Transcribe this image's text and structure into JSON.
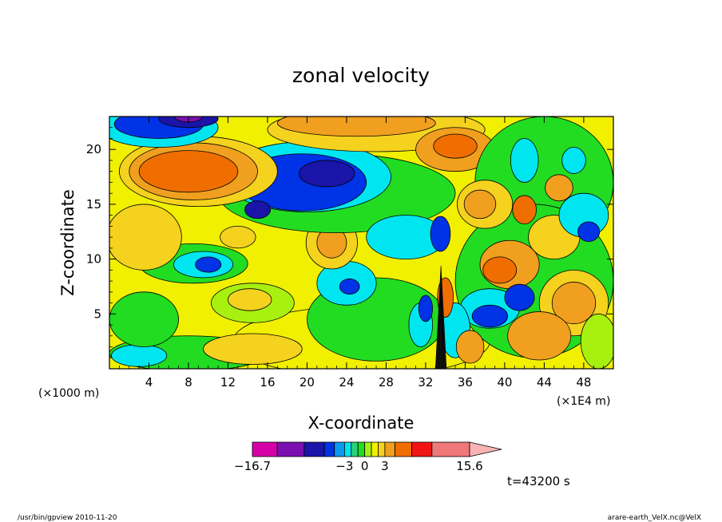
{
  "chart_data": {
    "type": "heatmap",
    "title": "zonal velocity",
    "xlabel": "X-coordinate",
    "ylabel": "Z-coordinate",
    "x_scale_label": "(×1000 m)",
    "x_unit_label": "(×1E4 m)",
    "time_label": "t=43200 s",
    "xlim": [
      0,
      51
    ],
    "ylim": [
      0,
      23
    ],
    "x_ticks": [
      4,
      8,
      12,
      16,
      20,
      24,
      28,
      32,
      36,
      40,
      44,
      48
    ],
    "x_tick_labels": [
      "4",
      "8",
      "12",
      "16",
      "20",
      "24",
      "28",
      "32",
      "36",
      "40",
      "44",
      "48"
    ],
    "y_ticks": [
      5,
      10,
      15,
      20
    ],
    "y_tick_labels": [
      "5",
      "10",
      "15",
      "20"
    ],
    "colorbar": {
      "labels": [
        {
          "value": -16.7,
          "text": "−16.7"
        },
        {
          "value": -3,
          "text": "−3"
        },
        {
          "value": 0,
          "text": "0"
        },
        {
          "value": 3,
          "text": "3"
        },
        {
          "value": 15.6,
          "text": "15.6"
        }
      ],
      "levels": [
        {
          "from": -16.7,
          "to": -13,
          "color": "#d600a8"
        },
        {
          "from": -13,
          "to": -9,
          "color": "#7a10b0"
        },
        {
          "from": -9,
          "to": -6,
          "color": "#1a14a8"
        },
        {
          "from": -6,
          "to": -4.5,
          "color": "#0032e6"
        },
        {
          "from": -4.5,
          "to": -3,
          "color": "#0a9af0"
        },
        {
          "from": -3,
          "to": -2,
          "color": "#00e6f0"
        },
        {
          "from": -2,
          "to": -1,
          "color": "#28d278"
        },
        {
          "from": -1,
          "to": 0,
          "color": "#22dc22"
        },
        {
          "from": 0,
          "to": 1,
          "color": "#a8f010"
        },
        {
          "from": 1,
          "to": 2,
          "color": "#f0f000"
        },
        {
          "from": 2,
          "to": 3,
          "color": "#f4d21e"
        },
        {
          "from": 3,
          "to": 4.5,
          "color": "#f0a01e"
        },
        {
          "from": 4.5,
          "to": 7,
          "color": "#f06e00"
        },
        {
          "from": 7,
          "to": 10,
          "color": "#f01414"
        },
        {
          "from": 10,
          "to": 15.6,
          "color": "#f07878"
        }
      ],
      "extend_color": "#f8b4b4"
    },
    "background_color": "#f0f000",
    "regions": [
      {
        "x": 25.5,
        "y": 2.5,
        "rx": 13,
        "ry": 3.2,
        "level": 1,
        "color": "#f0f000"
      },
      {
        "x": 8,
        "y": 1.4,
        "rx": 8,
        "ry": 1.6,
        "level": -1,
        "color": "#22dc22"
      },
      {
        "x": 3,
        "y": 1.2,
        "rx": 2.8,
        "ry": 1.0,
        "level": -3,
        "color": "#00e6f0"
      },
      {
        "x": 14.5,
        "y": 1.8,
        "rx": 5,
        "ry": 1.4,
        "level": 3,
        "color": "#f4d21e"
      },
      {
        "x": 27,
        "y": 4.5,
        "rx": 7,
        "ry": 3.8,
        "level": -1,
        "color": "#22dc22"
      },
      {
        "x": 24,
        "y": 7.8,
        "rx": 3,
        "ry": 2.0,
        "level": -3,
        "color": "#00e6f0"
      },
      {
        "x": 24.3,
        "y": 7.5,
        "rx": 1.0,
        "ry": 0.7,
        "level": -6,
        "color": "#0032e6"
      },
      {
        "x": 14.5,
        "y": 6.0,
        "rx": 4.2,
        "ry": 1.8,
        "level": 0,
        "color": "#a8f010"
      },
      {
        "x": 14.2,
        "y": 6.3,
        "rx": 2.2,
        "ry": 1.0,
        "level": 3,
        "color": "#f4d21e"
      },
      {
        "x": 3.5,
        "y": 4.5,
        "rx": 3.5,
        "ry": 2.5,
        "level": -1,
        "color": "#22dc22"
      },
      {
        "x": 8.5,
        "y": 9.6,
        "rx": 5.5,
        "ry": 1.8,
        "level": -1,
        "color": "#22dc22"
      },
      {
        "x": 9.5,
        "y": 9.5,
        "rx": 3,
        "ry": 1.2,
        "level": -3,
        "color": "#00e6f0"
      },
      {
        "x": 10,
        "y": 9.5,
        "rx": 1.3,
        "ry": 0.7,
        "level": -6,
        "color": "#0032e6"
      },
      {
        "x": 3.5,
        "y": 12,
        "rx": 3.8,
        "ry": 3.0,
        "level": 3,
        "color": "#f4d21e"
      },
      {
        "x": 22.5,
        "y": 11.5,
        "rx": 2.6,
        "ry": 2.4,
        "level": 3,
        "color": "#f4d21e"
      },
      {
        "x": 22.5,
        "y": 11.5,
        "rx": 1.5,
        "ry": 1.4,
        "level": 4.5,
        "color": "#f0a01e"
      },
      {
        "x": 13,
        "y": 12.0,
        "rx": 1.8,
        "ry": 1.0,
        "level": 3,
        "color": "#f4d21e"
      },
      {
        "x": 23,
        "y": 16,
        "rx": 12,
        "ry": 3.6,
        "level": -1,
        "color": "#22dc22"
      },
      {
        "x": 20,
        "y": 17.5,
        "rx": 8.5,
        "ry": 3.2,
        "level": -3,
        "color": "#00e6f0"
      },
      {
        "x": 19.5,
        "y": 17,
        "rx": 6.5,
        "ry": 2.6,
        "level": -6,
        "color": "#0032e6"
      },
      {
        "x": 22,
        "y": 17.8,
        "rx": 2.8,
        "ry": 1.2,
        "level": -9,
        "color": "#1a14a8"
      },
      {
        "x": 15,
        "y": 14.5,
        "rx": 1.3,
        "ry": 0.8,
        "level": -9,
        "color": "#1a14a8"
      },
      {
        "x": 30,
        "y": 12,
        "rx": 4,
        "ry": 2.0,
        "level": -3,
        "color": "#00e6f0"
      },
      {
        "x": 33.5,
        "y": 12.3,
        "rx": 1.0,
        "ry": 1.6,
        "level": -6,
        "color": "#0032e6"
      },
      {
        "x": 9,
        "y": 18,
        "rx": 8,
        "ry": 3.2,
        "level": 3,
        "color": "#f4d21e"
      },
      {
        "x": 8.5,
        "y": 18,
        "rx": 6.5,
        "ry": 2.6,
        "level": 4.5,
        "color": "#f0a01e"
      },
      {
        "x": 8,
        "y": 18,
        "rx": 5,
        "ry": 1.9,
        "level": 7,
        "color": "#f06e00"
      },
      {
        "x": 5,
        "y": 22,
        "rx": 6,
        "ry": 1.8,
        "level": -3,
        "color": "#00e6f0"
      },
      {
        "x": 5,
        "y": 22.3,
        "rx": 4.5,
        "ry": 1.3,
        "level": -6,
        "color": "#0032e6"
      },
      {
        "x": 8,
        "y": 22.8,
        "rx": 3,
        "ry": 0.8,
        "level": -9,
        "color": "#1a14a8"
      },
      {
        "x": 8,
        "y": 23,
        "rx": 1.4,
        "ry": 0.5,
        "level": -13,
        "color": "#7a10b0"
      },
      {
        "x": 27,
        "y": 21.8,
        "rx": 11,
        "ry": 2.0,
        "level": 3,
        "color": "#f4d21e"
      },
      {
        "x": 25,
        "y": 22.4,
        "rx": 8,
        "ry": 1.2,
        "level": 4.5,
        "color": "#f0a01e"
      },
      {
        "x": 35,
        "y": 20,
        "rx": 4,
        "ry": 2.0,
        "level": 4.5,
        "color": "#f0a01e"
      },
      {
        "x": 35,
        "y": 20.3,
        "rx": 2.2,
        "ry": 1.1,
        "level": 7,
        "color": "#f06e00"
      },
      {
        "x": 44,
        "y": 17,
        "rx": 7,
        "ry": 6.0,
        "level": -1,
        "color": "#22dc22"
      },
      {
        "x": 43,
        "y": 8,
        "rx": 8,
        "ry": 7,
        "level": -1,
        "color": "#22dc22"
      },
      {
        "x": 38,
        "y": 15,
        "rx": 2.8,
        "ry": 2.2,
        "level": 3,
        "color": "#f4d21e"
      },
      {
        "x": 37.5,
        "y": 15,
        "rx": 1.6,
        "ry": 1.3,
        "level": 4.5,
        "color": "#f0a01e"
      },
      {
        "x": 45,
        "y": 12,
        "rx": 2.6,
        "ry": 2.0,
        "level": 3,
        "color": "#f4d21e"
      },
      {
        "x": 48,
        "y": 14,
        "rx": 2.5,
        "ry": 2.0,
        "level": -3,
        "color": "#00e6f0"
      },
      {
        "x": 48.5,
        "y": 12.5,
        "rx": 1.1,
        "ry": 0.9,
        "level": -6,
        "color": "#0032e6"
      },
      {
        "x": 40.5,
        "y": 9.5,
        "rx": 3,
        "ry": 2.2,
        "level": 4.5,
        "color": "#f0a01e"
      },
      {
        "x": 39.5,
        "y": 9.0,
        "rx": 1.7,
        "ry": 1.2,
        "level": 7,
        "color": "#f06e00"
      },
      {
        "x": 38.5,
        "y": 5.5,
        "rx": 3,
        "ry": 1.8,
        "level": -3,
        "color": "#00e6f0"
      },
      {
        "x": 38.5,
        "y": 4.8,
        "rx": 1.8,
        "ry": 1.0,
        "level": -6,
        "color": "#0032e6"
      },
      {
        "x": 41.5,
        "y": 6.5,
        "rx": 1.5,
        "ry": 1.2,
        "level": -6,
        "color": "#0032e6"
      },
      {
        "x": 47,
        "y": 6.0,
        "rx": 3.5,
        "ry": 3.0,
        "level": 3,
        "color": "#f4d21e"
      },
      {
        "x": 47,
        "y": 6.0,
        "rx": 2.2,
        "ry": 1.9,
        "level": 4.5,
        "color": "#f0a01e"
      },
      {
        "x": 43.5,
        "y": 3.0,
        "rx": 3.2,
        "ry": 2.2,
        "level": 4.5,
        "color": "#f0a01e"
      },
      {
        "x": 49.5,
        "y": 2.5,
        "rx": 1.8,
        "ry": 2.5,
        "level": 0,
        "color": "#a8f010"
      },
      {
        "x": 35,
        "y": 3.5,
        "rx": 1.5,
        "ry": 2.5,
        "level": -3,
        "color": "#00e6f0"
      },
      {
        "x": 34,
        "y": 6.5,
        "rx": 0.8,
        "ry": 1.8,
        "level": 7,
        "color": "#f06e00"
      },
      {
        "x": 36.5,
        "y": 2.0,
        "rx": 1.4,
        "ry": 1.5,
        "level": 4.5,
        "color": "#f0a01e"
      },
      {
        "x": 31.5,
        "y": 4.0,
        "rx": 1.2,
        "ry": 2.0,
        "level": -3,
        "color": "#00e6f0"
      },
      {
        "x": 32,
        "y": 5.5,
        "rx": 0.7,
        "ry": 1.2,
        "level": -6,
        "color": "#0032e6"
      },
      {
        "x": 42,
        "y": 19,
        "rx": 1.4,
        "ry": 2.0,
        "level": -3,
        "color": "#00e6f0"
      },
      {
        "x": 47,
        "y": 19,
        "rx": 1.2,
        "ry": 1.2,
        "level": -3,
        "color": "#00e6f0"
      },
      {
        "x": 42,
        "y": 14.5,
        "rx": 1.2,
        "ry": 1.3,
        "level": 7,
        "color": "#f06e00"
      },
      {
        "x": 45.5,
        "y": 16.5,
        "rx": 1.4,
        "ry": 1.2,
        "level": 4.5,
        "color": "#f0a01e"
      }
    ]
  },
  "footer": {
    "left": "/usr/bin/gpview   2010-11-20",
    "right": "arare-earth_VelX.nc@VelX"
  }
}
